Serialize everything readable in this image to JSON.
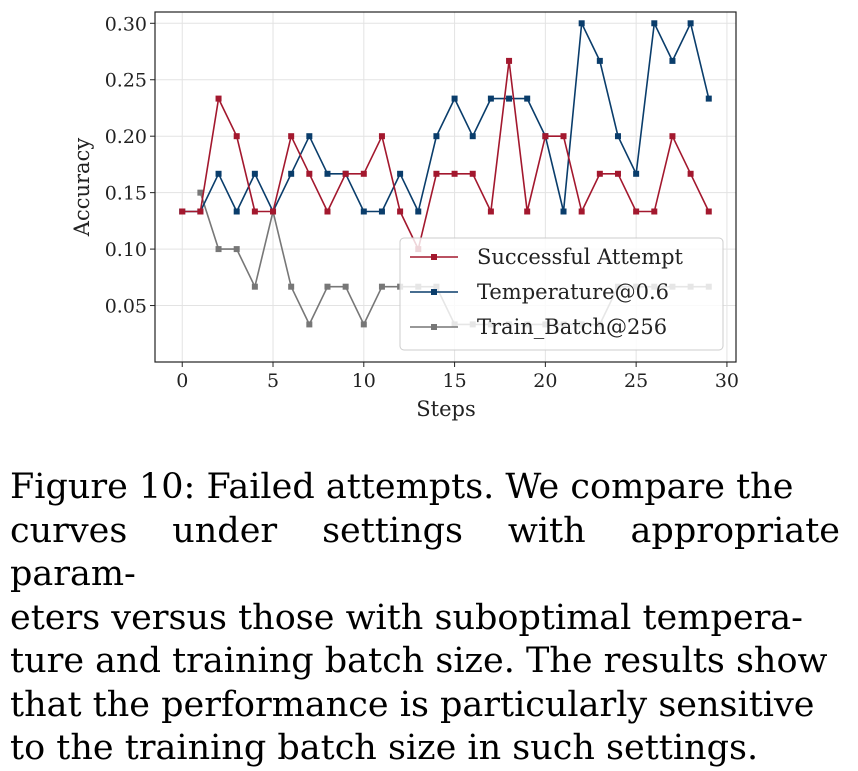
{
  "chart_data": {
    "type": "line",
    "xlabel": "Steps",
    "ylabel": "Accuracy",
    "xlim": [
      -1.5,
      30.5
    ],
    "ylim": [
      0.0,
      0.31
    ],
    "xticks": [
      0,
      5,
      10,
      15,
      20,
      25,
      30
    ],
    "yticks": [
      0.05,
      0.1,
      0.15,
      0.2,
      0.25,
      0.3
    ],
    "xtick_labels": [
      "0",
      "5",
      "10",
      "15",
      "20",
      "25",
      "30"
    ],
    "ytick_labels": [
      "0.05",
      "0.10",
      "0.15",
      "0.20",
      "0.25",
      "0.30"
    ],
    "grid": true,
    "legend_position": "lower-right",
    "series": [
      {
        "name": "Successful Attempt",
        "color": "#a3182e",
        "x": [
          0,
          1,
          2,
          3,
          4,
          5,
          6,
          7,
          8,
          9,
          10,
          11,
          12,
          13,
          14,
          15,
          16,
          17,
          18,
          19,
          20,
          21,
          22,
          23,
          24,
          25,
          26,
          27,
          28,
          29
        ],
        "values": [
          0.1333,
          0.1333,
          0.2333,
          0.2,
          0.1333,
          0.1333,
          0.2,
          0.1667,
          0.1333,
          0.1667,
          0.1667,
          0.2,
          0.1333,
          0.1,
          0.1667,
          0.1667,
          0.1667,
          0.1333,
          0.2667,
          0.1333,
          0.2,
          0.2,
          0.1333,
          0.1667,
          0.1667,
          0.1333,
          0.1333,
          0.2,
          0.1667,
          0.1333
        ]
      },
      {
        "name": "Temperature@0.6",
        "color": "#0a3d6b",
        "x": [
          0,
          1,
          2,
          3,
          4,
          5,
          6,
          7,
          8,
          9,
          10,
          11,
          12,
          13,
          14,
          15,
          16,
          17,
          18,
          19,
          20,
          21,
          22,
          23,
          24,
          25,
          26,
          27,
          28,
          29
        ],
        "values": [
          0.1333,
          0.1333,
          0.1667,
          0.1333,
          0.1667,
          0.1333,
          0.1667,
          0.2,
          0.1667,
          0.1667,
          0.1333,
          0.1333,
          0.1667,
          0.1333,
          0.2,
          0.2333,
          0.2,
          0.2333,
          0.2333,
          0.2333,
          0.2,
          0.1333,
          0.3,
          0.2667,
          0.2,
          0.1667,
          0.3,
          0.2667,
          0.3,
          0.2333
        ]
      },
      {
        "name": "Train_Batch@256",
        "color": "#777777",
        "x": [
          1,
          2,
          3,
          4,
          5,
          6,
          7,
          8,
          9,
          10,
          11,
          12,
          13,
          14,
          15,
          16,
          17,
          18,
          19,
          20,
          21,
          22,
          23,
          24,
          25,
          26,
          27,
          28,
          29
        ],
        "values": [
          0.15,
          0.1,
          0.1,
          0.0667,
          0.1333,
          0.0667,
          0.0333,
          0.0667,
          0.0667,
          0.0333,
          0.0667,
          0.0667,
          0.0667,
          0.0667,
          0.0333,
          0.0333,
          0.0333,
          0.0333,
          0.0333,
          0.0333,
          0.0333,
          0.0333,
          0.0333,
          0.0667,
          0.0667,
          0.0667,
          0.0667,
          0.0667,
          0.0667
        ]
      }
    ]
  },
  "caption": {
    "line1": "Figure 10: Failed attempts.  We compare the",
    "line2": "curves under settings with appropriate param-",
    "line3": "eters versus those with suboptimal tempera-",
    "line4": "ture and training batch size. The results show",
    "line5": "that the performance is particularly sensitive",
    "line6": "to the training batch size in such settings."
  }
}
